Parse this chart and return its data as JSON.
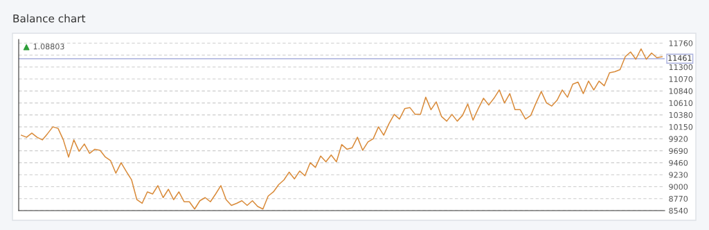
{
  "chart_data": {
    "type": "line",
    "title": "Balance chart",
    "categories": [
      null,
      null,
      null,
      null,
      null,
      null,
      null,
      null,
      null,
      null,
      null,
      null,
      null,
      null,
      null,
      null,
      null,
      null,
      null,
      null,
      null,
      null,
      null,
      null,
      null,
      null,
      null,
      null,
      null,
      null,
      null,
      null,
      null,
      null,
      null,
      null,
      null,
      null,
      null,
      null,
      null,
      null,
      null,
      null,
      null,
      null,
      null,
      null,
      null,
      null,
      null,
      null,
      null,
      null,
      null,
      null,
      null,
      null,
      null,
      null,
      null,
      null,
      null,
      null,
      null,
      null,
      null,
      null,
      null,
      null,
      null,
      null,
      null,
      null,
      null,
      null,
      null,
      null,
      null,
      null,
      null,
      null,
      null,
      null,
      null,
      null,
      null,
      null,
      null,
      null,
      null,
      null,
      null,
      null,
      null,
      null,
      null,
      null,
      null,
      null,
      null,
      null,
      null,
      null,
      null,
      null,
      null,
      null,
      null,
      null,
      null,
      null,
      null,
      null,
      null,
      null,
      null,
      null,
      null,
      null,
      null,
      null,
      null
    ],
    "series": [
      {
        "color": "#d98b3a",
        "values": [
          9990,
          9950,
          10030,
          9950,
          9900,
          10020,
          10150,
          10120,
          9900,
          9570,
          9900,
          9680,
          9820,
          9640,
          9720,
          9700,
          9570,
          9500,
          9260,
          9460,
          9290,
          9130,
          8750,
          8680,
          8900,
          8860,
          9020,
          8790,
          8950,
          8750,
          8900,
          8710,
          8710,
          8570,
          8730,
          8790,
          8710,
          8860,
          9020,
          8750,
          8640,
          8680,
          8730,
          8640,
          8730,
          8620,
          8570,
          8820,
          8900,
          9040,
          9130,
          9280,
          9150,
          9300,
          9210,
          9460,
          9370,
          9590,
          9480,
          9610,
          9480,
          9810,
          9720,
          9750,
          9950,
          9700,
          9860,
          9920,
          10150,
          9990,
          10210,
          10390,
          10300,
          10500,
          10520,
          10390,
          10390,
          10720,
          10480,
          10630,
          10350,
          10260,
          10390,
          10260,
          10370,
          10590,
          10280,
          10500,
          10700,
          10570,
          10700,
          10860,
          10610,
          10790,
          10480,
          10480,
          10300,
          10370,
          10610,
          10830,
          10610,
          10550,
          10660,
          10860,
          10720,
          10970,
          11010,
          10790,
          11030,
          10860,
          11030,
          10940,
          11190,
          11210,
          11250,
          11500,
          11590,
          11450,
          11650,
          11450,
          11570,
          11480,
          11500
        ]
      }
    ],
    "ylim": [
      8540,
      11830
    ],
    "yticks": [
      8540,
      8770,
      9000,
      9230,
      9460,
      9690,
      9920,
      10150,
      10380,
      10610,
      10840,
      11070,
      {
        "value": 11300,
        "label": "11300"
      },
      {
        "value": 11530,
        "label": null
      },
      11760
    ],
    "grid": "y",
    "tick_labels": "y",
    "line_style": "solid",
    "marker": "none",
    "ref_lines": [
      {
        "axis": "y",
        "value": 11461,
        "label": "11461",
        "color": "#a9b0dd",
        "line_style": "solid"
      }
    ],
    "annotations": [
      "1.08803"
    ]
  }
}
